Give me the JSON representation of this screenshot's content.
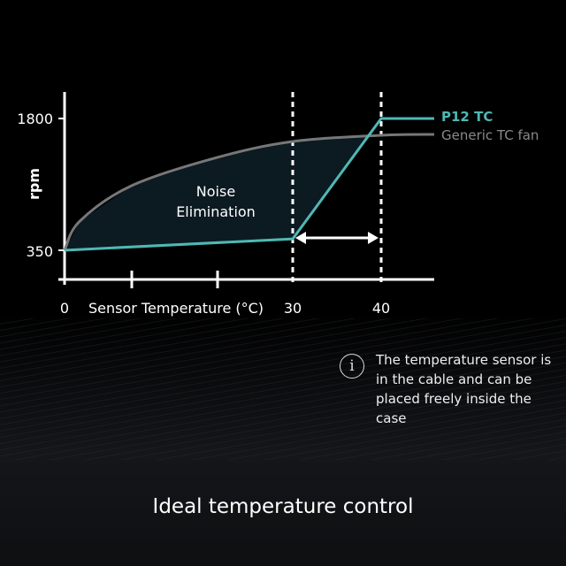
{
  "chart_data": {
    "type": "line",
    "xlabel": "Sensor Temperature (°C)",
    "ylabel": "rpm",
    "x_tick_labels": [
      "0",
      "30",
      "40"
    ],
    "y_tick_labels": [
      "350",
      "1800"
    ],
    "x_ticks": [
      0,
      30,
      40
    ],
    "y_ticks": [
      350,
      1800
    ],
    "xlim": [
      0,
      46
    ],
    "ylim": [
      30,
      2080
    ],
    "grid": false,
    "legend": "right, at line ends",
    "series": [
      {
        "name": "P12 TC",
        "color": "#4fb8b4",
        "x": [
          0,
          30,
          40,
          46
        ],
        "y": [
          350,
          475,
          1800,
          1800
        ]
      },
      {
        "name": "Generic TC fan",
        "color": "#777777",
        "x": [
          0,
          2,
          8.8,
          20,
          30,
          40,
          46
        ],
        "y": [
          350,
          670,
          1060,
          1370,
          1547,
          1615,
          1625
        ]
      }
    ],
    "vlines": [
      30,
      40
    ],
    "annotations": {
      "region_label": [
        "Noise",
        "Elimination"
      ],
      "arrow": {
        "from": 30,
        "to": 40
      }
    }
  },
  "info": {
    "icon": "info-icon",
    "symbol": "i",
    "text": "The temperature sensor is in the cable and can be placed freely inside the case"
  },
  "title": "Ideal temperature control"
}
